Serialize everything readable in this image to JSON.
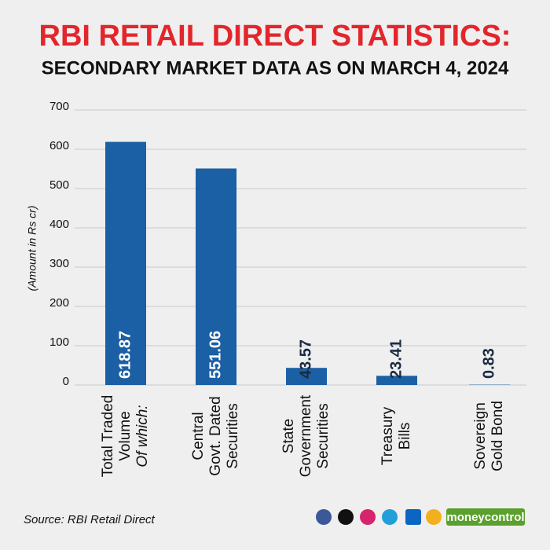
{
  "chart_data": {
    "type": "bar",
    "title": "RBI RETAIL DIRECT STATISTICS:",
    "subtitle": "SECONDARY MARKET DATA AS ON MARCH 4, 2024",
    "y_label": "(Amount in Rs cr)",
    "categories": [
      [
        "Total Traded",
        "Volume",
        "Of which:"
      ],
      [
        "Central",
        "Govt. Dated",
        "Securities"
      ],
      [
        "State",
        "Government",
        "Securities"
      ],
      [
        "Treasury",
        "Bills"
      ],
      [
        "Sovereign",
        "Gold Bond"
      ]
    ],
    "values": [
      618.87,
      551.06,
      43.57,
      23.41,
      0.83
    ],
    "color": "#1b5fa4",
    "ylim": [
      0,
      700
    ],
    "yticks": [
      0,
      100,
      200,
      300,
      400,
      500,
      600,
      700
    ],
    "grid": true,
    "source": "Source: RBI Retail Direct"
  },
  "footer": {
    "brand": "moneycontrol"
  }
}
